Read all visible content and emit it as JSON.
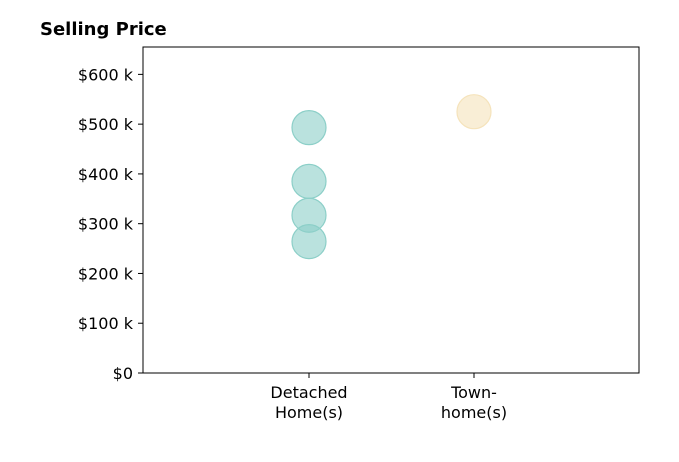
{
  "chart_data": {
    "type": "scatter",
    "title": "Selling Price",
    "xlabel": "",
    "ylabel": "",
    "categories": [
      [
        "Detached",
        "Home(s)"
      ],
      [
        "Town-",
        "home(s)"
      ]
    ],
    "ylim": [
      0,
      655000
    ],
    "yticks": [
      0,
      100000,
      200000,
      300000,
      400000,
      500000,
      600000
    ],
    "ytick_labels": [
      "$0",
      "$100 k",
      "$200 k",
      "$300 k",
      "$400 k",
      "$500 k",
      "$600 k"
    ],
    "grid": false,
    "legend": "none",
    "series": [
      {
        "category": 0,
        "color": "#8ccfc8",
        "values": [
          493000,
          385000,
          317000,
          264000
        ]
      },
      {
        "category": 1,
        "color": "#f5e3bb",
        "values": [
          525000
        ]
      }
    ]
  }
}
